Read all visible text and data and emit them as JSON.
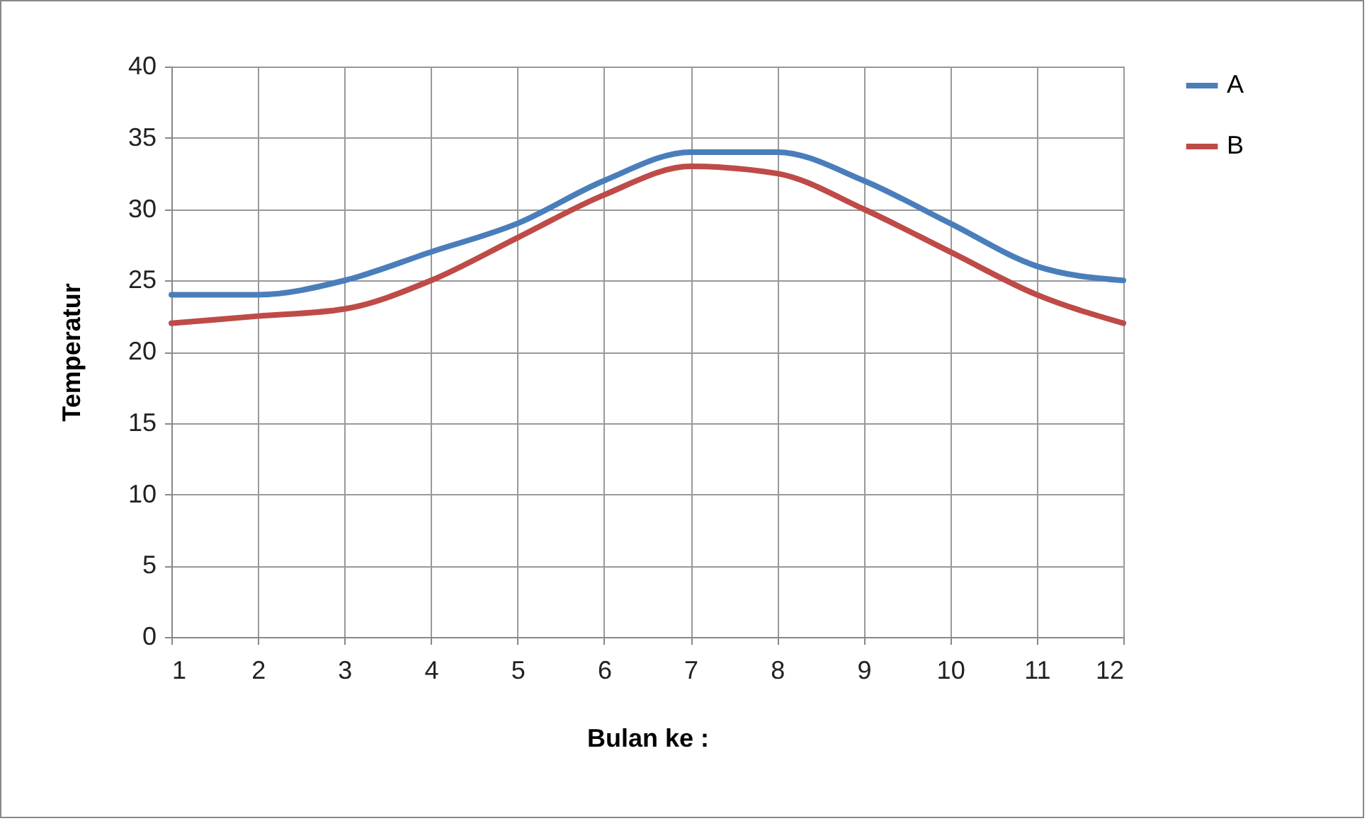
{
  "chart_data": {
    "type": "line",
    "xlabel": "Bulan ke :",
    "ylabel": "Temperatur",
    "x": [
      1,
      2,
      3,
      4,
      5,
      6,
      7,
      8,
      9,
      10,
      11,
      12
    ],
    "series": [
      {
        "name": "A",
        "color": "#4a7ebb",
        "values": [
          24,
          24,
          25,
          27,
          29,
          32,
          34,
          34,
          32,
          29,
          26,
          25
        ]
      },
      {
        "name": "B",
        "color": "#be4b48",
        "values": [
          22,
          22.5,
          23,
          25,
          28,
          31,
          33,
          32.5,
          30,
          27,
          24,
          22
        ]
      }
    ],
    "xlim": [
      1,
      12
    ],
    "xticks": [
      1,
      2,
      3,
      4,
      5,
      6,
      7,
      8,
      9,
      10,
      11,
      12
    ],
    "ylim": [
      0,
      40
    ],
    "yticks": [
      0,
      5,
      10,
      15,
      20,
      25,
      30,
      35,
      40
    ],
    "grid": true,
    "legend": "right",
    "marker": "none",
    "line_style": "solid"
  }
}
